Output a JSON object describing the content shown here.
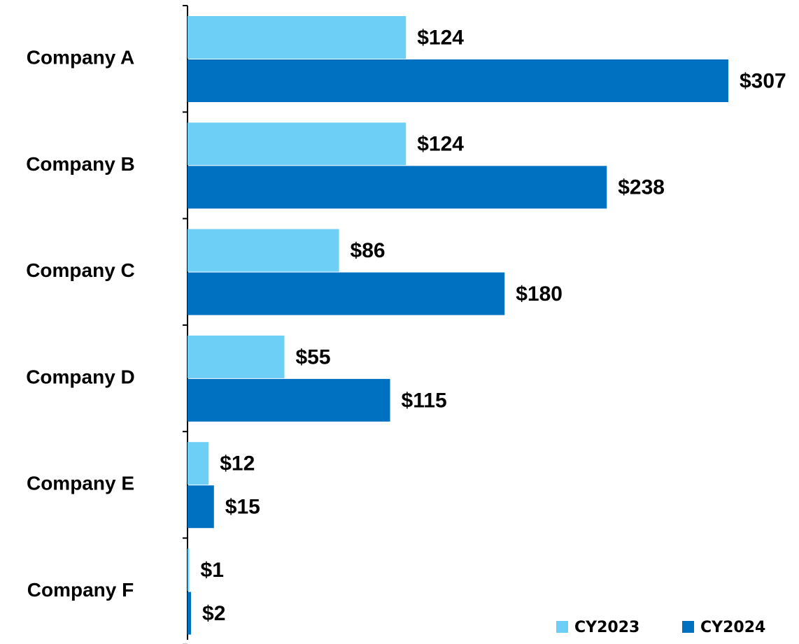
{
  "chart_data": {
    "type": "bar",
    "orientation": "horizontal",
    "categories": [
      "Company A",
      "Company B",
      "Company C",
      "Company D",
      "Company E",
      "Company F"
    ],
    "series": [
      {
        "name": "CY2023",
        "color": "#6dcff6",
        "values": [
          124,
          124,
          86,
          55,
          12,
          1
        ],
        "value_labels": [
          "$124",
          "$124",
          "$86",
          "$55",
          "$12",
          "$1"
        ]
      },
      {
        "name": "CY2024",
        "color": "#0070c0",
        "values": [
          307,
          238,
          180,
          115,
          15,
          2
        ],
        "value_labels": [
          "$307",
          "$238",
          "$180",
          "$115",
          "$15",
          "$2"
        ]
      }
    ],
    "legend": "bottom-right"
  }
}
